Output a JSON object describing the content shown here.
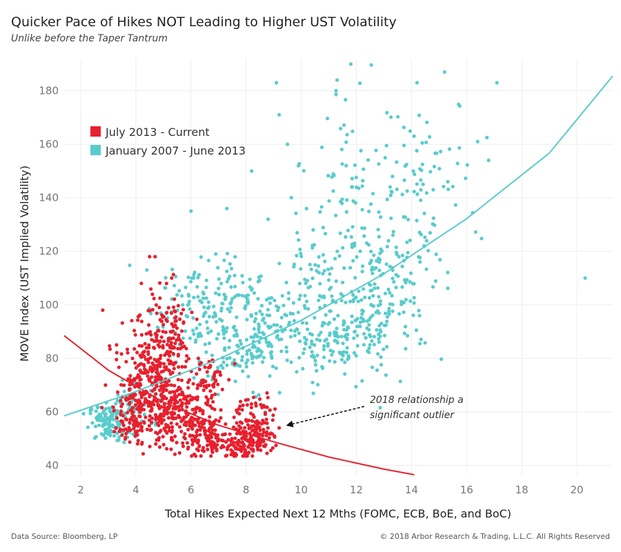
{
  "title": "Quicker Pace of Hikes NOT Leading to Higher UST Volatility",
  "subtitle": "Unlike before the Taper Tantrum",
  "footer": {
    "source": "Data Source: Bloomberg, LP",
    "copyright": "© 2018 Arbor Research & Trading, L.L.C. All Rights Reserved"
  },
  "colors": {
    "current": "#e8202e",
    "historical": "#58cccb",
    "grid": "#eeeeee",
    "arrow": "#111111"
  },
  "chart_data": {
    "type": "scatter",
    "xlabel": "Total Hikes Expected Next 12 Mths (FOMC, ECB, BoE, and BoC)",
    "ylabel": "MOVE Index (UST Implied Volatility)",
    "xlim": [
      1.4,
      21.3
    ],
    "ylim": [
      36.5,
      192
    ],
    "x_ticks": [
      2,
      4,
      6,
      8,
      10,
      12,
      14,
      16,
      18,
      20
    ],
    "y_ticks": [
      40,
      60,
      80,
      100,
      120,
      140,
      160,
      180
    ],
    "grid": true,
    "legend_position": "top-left",
    "series": [
      {
        "name": "July 2013 - Current",
        "color": "#e8202e",
        "trend": {
          "x": [
            1.4,
            3,
            5,
            7,
            9,
            11,
            13,
            14.1
          ],
          "y": [
            88.5,
            75.6,
            63.6,
            55,
            48.8,
            43.1,
            38.6,
            36.5
          ]
        },
        "clusters": [
          {
            "cx": 4.7,
            "cy": 75,
            "sx": 0.55,
            "sy": 11,
            "n": 300
          },
          {
            "cx": 5.5,
            "cy": 60,
            "sx": 0.6,
            "sy": 7,
            "n": 200
          },
          {
            "cx": 4.0,
            "cy": 60,
            "sx": 0.4,
            "sy": 6,
            "n": 120
          },
          {
            "cx": 6.5,
            "cy": 51,
            "sx": 0.4,
            "sy": 4,
            "n": 100
          },
          {
            "cx": 8.2,
            "cy": 51,
            "sx": 0.4,
            "sy": 3.5,
            "n": 130
          },
          {
            "cx": 7.4,
            "cy": 48,
            "sx": 0.5,
            "sy": 3,
            "n": 70
          },
          {
            "cx": 6.6,
            "cy": 72,
            "sx": 0.3,
            "sy": 5,
            "n": 50
          },
          {
            "cx": 5.2,
            "cy": 90,
            "sx": 0.5,
            "sy": 8,
            "n": 50
          },
          {
            "cx": 8.3,
            "cy": 60,
            "sx": 0.35,
            "sy": 4,
            "n": 40
          }
        ],
        "points": [
          {
            "x": 2.8,
            "y": 98
          },
          {
            "x": 4.2,
            "y": 108
          },
          {
            "x": 4.7,
            "y": 118
          },
          {
            "x": 4.5,
            "y": 118
          },
          {
            "x": 5.3,
            "y": 110
          },
          {
            "x": 9.2,
            "y": 54
          },
          {
            "x": 8.9,
            "y": 52
          },
          {
            "x": 3.3,
            "y": 85
          },
          {
            "x": 2.9,
            "y": 70
          }
        ]
      },
      {
        "name": "January 2007 - June 2013",
        "color": "#58cccb",
        "trend": {
          "x": [
            1.4,
            4,
            7,
            10,
            13,
            16,
            19,
            21.3
          ],
          "y": [
            58.5,
            67.6,
            79.7,
            94.2,
            111.6,
            132.2,
            156.7,
            185.5
          ]
        },
        "clusters": [
          {
            "cx": 3.0,
            "cy": 56,
            "sx": 0.35,
            "sy": 3.5,
            "n": 110
          },
          {
            "cx": 4.0,
            "cy": 62,
            "sx": 0.5,
            "sy": 5,
            "n": 60
          },
          {
            "cx": 6.5,
            "cy": 100,
            "sx": 1.0,
            "sy": 9,
            "n": 150
          },
          {
            "cx": 8.3,
            "cy": 92,
            "sx": 0.8,
            "sy": 10,
            "n": 100
          },
          {
            "cx": 7.5,
            "cy": 80,
            "sx": 1.0,
            "sy": 6,
            "n": 60
          },
          {
            "cx": 11.5,
            "cy": 88,
            "sx": 0.9,
            "sy": 7,
            "n": 150
          },
          {
            "cx": 10.7,
            "cy": 108,
            "sx": 0.9,
            "sy": 10,
            "n": 80
          },
          {
            "cx": 13.2,
            "cy": 108,
            "sx": 1.0,
            "sy": 14,
            "n": 160
          },
          {
            "cx": 14.0,
            "cy": 150,
            "sx": 1.3,
            "sy": 14,
            "n": 90
          },
          {
            "cx": 11.8,
            "cy": 150,
            "sx": 1.0,
            "sy": 12,
            "n": 40
          },
          {
            "cx": 9.5,
            "cy": 88,
            "sx": 0.7,
            "sy": 9,
            "n": 40
          }
        ],
        "points": [
          {
            "x": 9.1,
            "y": 183
          },
          {
            "x": 9.2,
            "y": 171
          },
          {
            "x": 11.8,
            "y": 190
          },
          {
            "x": 11.3,
            "y": 184
          },
          {
            "x": 15.2,
            "y": 187
          },
          {
            "x": 17.1,
            "y": 183
          },
          {
            "x": 20.3,
            "y": 110
          },
          {
            "x": 6.0,
            "y": 135
          },
          {
            "x": 6.9,
            "y": 119
          },
          {
            "x": 4.4,
            "y": 113
          },
          {
            "x": 8.2,
            "y": 150
          },
          {
            "x": 9.5,
            "y": 160
          },
          {
            "x": 9.9,
            "y": 152
          },
          {
            "x": 14.2,
            "y": 183
          },
          {
            "x": 16.4,
            "y": 161
          },
          {
            "x": 16.8,
            "y": 154
          },
          {
            "x": 8.8,
            "y": 132
          },
          {
            "x": 7.3,
            "y": 136
          }
        ]
      }
    ],
    "annotation": {
      "text": [
        "2018 relationship a",
        "significant outlier"
      ],
      "arrow_to": {
        "x": 9.5,
        "y": 55
      }
    }
  }
}
